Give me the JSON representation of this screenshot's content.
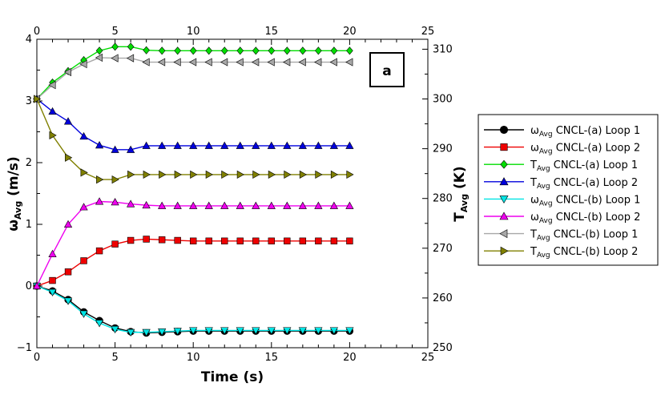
{
  "chart_data": {
    "type": "line",
    "xlabel": "Time (s)",
    "ylabel_left": {
      "main": "ω",
      "sub": "Avg",
      "rest": " (m/s)"
    },
    "ylabel_right": {
      "main": "T",
      "sub": "Avg",
      "rest": " (K)"
    },
    "xlim": [
      0,
      25
    ],
    "ylim_left": [
      -1,
      4
    ],
    "ylim_right": [
      250,
      312
    ],
    "x_ticks": [
      "0",
      "5",
      "10",
      "15",
      "20",
      "25"
    ],
    "y_left_ticks": [
      "−1",
      "0",
      "1",
      "2",
      "3",
      "4"
    ],
    "y_right_ticks": [
      "250",
      "260",
      "270",
      "280",
      "290",
      "300",
      "310"
    ],
    "annotation": "a",
    "grid": false,
    "legend_position": "right",
    "x": [
      0,
      1,
      2,
      3,
      4,
      5,
      6,
      7,
      8,
      9,
      10,
      11,
      12,
      13,
      14,
      15,
      16,
      17,
      18,
      19,
      20
    ],
    "series": [
      {
        "label_main": "ω",
        "label_sub": "Avg",
        "label_rest": " CNCL-(a) Loop 1",
        "axis": "left",
        "color": "#000000",
        "marker": "circle",
        "values": [
          0,
          -0.08,
          -0.22,
          -0.42,
          -0.56,
          -0.68,
          -0.74,
          -0.76,
          -0.75,
          -0.74,
          -0.73,
          -0.73,
          -0.73,
          -0.73,
          -0.73,
          -0.73,
          -0.73,
          -0.73,
          -0.73,
          -0.73,
          -0.73
        ]
      },
      {
        "label_main": "ω",
        "label_sub": "Avg",
        "label_rest": " CNCL-(a) Loop 2",
        "axis": "left",
        "color": "#ee0000",
        "marker": "square",
        "values": [
          0,
          0.09,
          0.23,
          0.41,
          0.57,
          0.68,
          0.74,
          0.76,
          0.75,
          0.74,
          0.73,
          0.73,
          0.73,
          0.73,
          0.73,
          0.73,
          0.73,
          0.73,
          0.73,
          0.73,
          0.73
        ]
      },
      {
        "label_main": "T",
        "label_sub": "Avg",
        "label_rest": " CNCL-(a) Loop 1",
        "axis": "right",
        "color": "#00dd00",
        "marker": "diamond",
        "values": [
          300,
          303.3,
          305.6,
          307.8,
          309.7,
          310.5,
          310.5,
          309.8,
          309.7,
          309.7,
          309.7,
          309.7,
          309.7,
          309.7,
          309.7,
          309.7,
          309.7,
          309.7,
          309.7,
          309.7,
          309.7
        ]
      },
      {
        "label_main": "T",
        "label_sub": "Avg",
        "label_rest": " CNCL-(a) Loop 2",
        "axis": "right",
        "color": "#0000dd",
        "marker": "triangle-up",
        "values": [
          300,
          297.5,
          295.5,
          292.5,
          290.7,
          289.8,
          289.8,
          290.6,
          290.6,
          290.6,
          290.6,
          290.6,
          290.6,
          290.6,
          290.6,
          290.6,
          290.6,
          290.6,
          290.6,
          290.6,
          290.6
        ]
      },
      {
        "label_main": "ω",
        "label_sub": "Avg",
        "label_rest": " CNCL-(b) Loop 1",
        "axis": "left",
        "color": "#00e5e5",
        "marker": "triangle-down",
        "values": [
          0,
          -0.1,
          -0.24,
          -0.45,
          -0.6,
          -0.7,
          -0.75,
          -0.75,
          -0.74,
          -0.73,
          -0.72,
          -0.72,
          -0.72,
          -0.72,
          -0.72,
          -0.72,
          -0.72,
          -0.72,
          -0.72,
          -0.72,
          -0.72
        ]
      },
      {
        "label_main": "ω",
        "label_sub": "Avg",
        "label_rest": " CNCL-(b) Loop 2",
        "axis": "left",
        "color": "#ee00ee",
        "marker": "triangle-up",
        "values": [
          0,
          0.52,
          1.0,
          1.28,
          1.37,
          1.36,
          1.33,
          1.31,
          1.3,
          1.3,
          1.3,
          1.3,
          1.3,
          1.3,
          1.3,
          1.3,
          1.3,
          1.3,
          1.3,
          1.3,
          1.3
        ]
      },
      {
        "label_main": "T",
        "label_sub": "Avg",
        "label_rest": " CNCL-(b) Loop 1",
        "axis": "right",
        "color": "#a8a8a8",
        "marker": "triangle-left",
        "values": [
          300,
          302.8,
          305.4,
          307.0,
          308.3,
          308.2,
          308.2,
          307.4,
          307.4,
          307.4,
          307.4,
          307.4,
          307.4,
          307.4,
          307.4,
          307.4,
          307.4,
          307.4,
          307.4,
          307.4,
          307.4
        ]
      },
      {
        "label_main": "T",
        "label_sub": "Avg",
        "label_rest": " CNCL-(b) Loop 2",
        "axis": "right",
        "color": "#808000",
        "marker": "triangle-right",
        "values": [
          300,
          292.7,
          288.2,
          285.2,
          283.8,
          283.8,
          284.8,
          284.8,
          284.8,
          284.8,
          284.8,
          284.8,
          284.8,
          284.8,
          284.8,
          284.8,
          284.8,
          284.8,
          284.8,
          284.8,
          284.8
        ]
      }
    ]
  }
}
